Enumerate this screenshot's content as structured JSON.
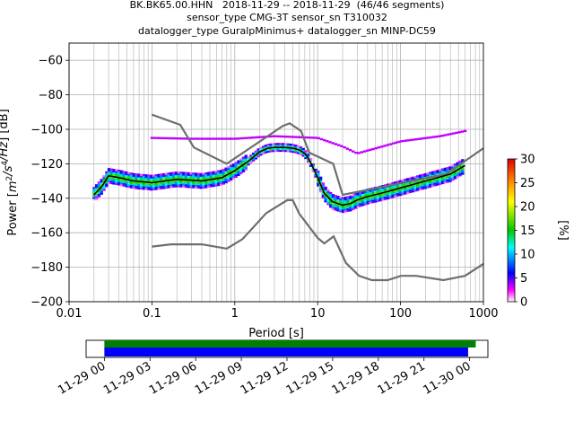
{
  "title_lines": [
    "BK.BK65.00.HHN   2018-11-29 -- 2018-11-29  (46/46 segments)",
    "sensor_type CMG-3T sensor_sn T310032",
    "datalogger_type GuralpMinimus+ datalogger_sn MINP-DC59"
  ],
  "chart_data": [
    {
      "type": "heatmap",
      "xlabel": "Period [s]",
      "ylabel_parts": [
        "Power [",
        "m",
        "2",
        "/s",
        "4",
        "/Hz",
        "] [dB]"
      ],
      "x_scale": "log",
      "xlim": [
        0.01,
        1000
      ],
      "ylim": [
        -200,
        -50
      ],
      "x_ticks": [
        0.01,
        0.1,
        1,
        10,
        100,
        1000
      ],
      "x_tick_labels": [
        "0.01",
        "0.1",
        "1",
        "10",
        "100",
        "1000"
      ],
      "y_ticks": [
        -200,
        -180,
        -160,
        -140,
        -120,
        -100,
        -80,
        -60
      ],
      "y_tick_labels": [
        "−200",
        "−180",
        "−160",
        "−140",
        "−120",
        "−100",
        "−80",
        "−60"
      ],
      "grid": true,
      "colorbar": {
        "label": "[%]",
        "range": [
          0,
          30
        ],
        "ticks": [
          0,
          5,
          10,
          15,
          20,
          25,
          30
        ],
        "tick_labels": [
          "0",
          "5",
          "10",
          "15",
          "20",
          "25",
          "30"
        ]
      },
      "series": [
        {
          "role": "high_noise_model",
          "x": [
            0.1,
            0.22,
            0.32,
            0.8,
            3.8,
            4.6,
            6.3,
            7.9,
            15.4,
            20,
            354.8,
            1000
          ],
          "y": [
            -91.5,
            -97.4,
            -110.5,
            -120,
            -98,
            -96.5,
            -101,
            -113.5,
            -120,
            -138,
            -126,
            -111
          ]
        },
        {
          "role": "low_noise_model",
          "x": [
            0.1,
            0.17,
            0.4,
            0.8,
            1.24,
            2.4,
            4.3,
            5,
            6,
            10,
            12,
            15.6,
            21.9,
            31.6,
            45,
            70,
            101,
            154,
            328,
            600,
            1000
          ],
          "y": [
            -168,
            -166.7,
            -166.7,
            -169.2,
            -163.7,
            -148.6,
            -141.1,
            -141.1,
            -149,
            -163,
            -166.2,
            -162.1,
            -177.5,
            -185,
            -187.5,
            -187.5,
            -185,
            -185,
            -187.5,
            -185,
            -178
          ]
        },
        {
          "role": "mean_psd",
          "x": [
            0.02,
            0.025,
            0.03,
            0.04,
            0.06,
            0.1,
            0.2,
            0.4,
            0.7,
            1.0,
            1.5,
            2.0,
            2.5,
            3.0,
            4.0,
            5.0,
            6.0,
            7.0,
            8.0,
            10,
            12,
            15,
            20,
            25,
            30,
            40,
            60,
            100,
            200,
            400,
            600
          ],
          "y": [
            -138,
            -133,
            -127,
            -128,
            -130,
            -131,
            -129,
            -130,
            -128,
            -124,
            -118,
            -113,
            -111,
            -110.5,
            -110.5,
            -111,
            -112,
            -114,
            -118,
            -128,
            -137,
            -142,
            -144,
            -143,
            -141,
            -139,
            -137,
            -134,
            -130,
            -126,
            -121
          ]
        },
        {
          "role": "psd_upper_band",
          "x": [
            0.1,
            0.3,
            1,
            3,
            10,
            20,
            30,
            60,
            100,
            300,
            600
          ],
          "y": [
            -105,
            -105.5,
            -105.5,
            -104,
            -105,
            -110,
            -114,
            -110,
            -107,
            -104,
            -101
          ]
        }
      ]
    },
    {
      "type": "timeline",
      "x_tick_labels": [
        "11-29 00",
        "11-29 03",
        "11-29 06",
        "11-29 09",
        "11-29 12",
        "11-29 15",
        "11-29 18",
        "11-29 21",
        "11-30 00"
      ],
      "x_ticks_hours": [
        0,
        3,
        6,
        9,
        12,
        15,
        18,
        21,
        24
      ],
      "xlim_hours": [
        -1.2,
        25.2
      ],
      "bars": [
        {
          "row": "top",
          "start_hours": 0,
          "end_hours": 24.4,
          "color": "#008000"
        },
        {
          "row": "bottom",
          "start_hours": 0,
          "end_hours": 23.9,
          "color": "#0000ff"
        }
      ]
    }
  ],
  "colors": {
    "model_line": "#6e6e6e",
    "mean_line": "#000000",
    "grid": "#b0b0b0",
    "upper_band": "#c000ff"
  }
}
